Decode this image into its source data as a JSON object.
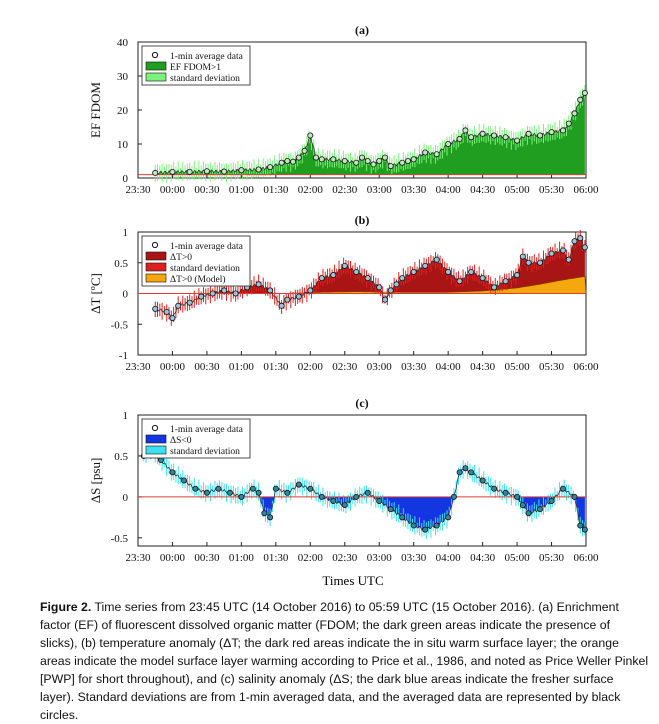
{
  "figure": {
    "time_axis": {
      "tick_labels": [
        "23:30",
        "00:00",
        "00:30",
        "01:00",
        "01:30",
        "02:00",
        "02:30",
        "03:00",
        "03:30",
        "04:00",
        "04:30",
        "05:00",
        "05:30",
        "06:00"
      ],
      "tick_minutes": [
        -30,
        0,
        30,
        60,
        90,
        120,
        150,
        180,
        210,
        240,
        270,
        300,
        330,
        360
      ],
      "label": "Times UTC"
    }
  },
  "chart_data": [
    {
      "type": "area",
      "panel_label": "(a)",
      "ylabel": "EF FDOM",
      "ylim": [
        0,
        40
      ],
      "yticks": [
        0,
        10,
        20,
        30,
        40
      ],
      "xlim_minutes": [
        -30,
        360
      ],
      "legend": {
        "position": "top-left",
        "entries": [
          "1-min average data",
          "EF FDOM>1",
          "standard deviation"
        ]
      },
      "colors": {
        "fill": "#1f9e1f",
        "sd": "#7cf27c",
        "baseline": "#e03c31",
        "marker": "#222222"
      },
      "baseline": 1,
      "series": [
        {
          "name": "1-min average data",
          "x_minutes": [
            -15,
            0,
            15,
            30,
            45,
            60,
            75,
            85,
            95,
            100,
            105,
            110,
            115,
            120,
            125,
            130,
            140,
            150,
            160,
            165,
            170,
            175,
            180,
            185,
            190,
            200,
            205,
            210,
            220,
            230,
            240,
            250,
            255,
            260,
            270,
            280,
            290,
            300,
            310,
            320,
            330,
            340,
            345,
            350,
            355,
            359
          ],
          "y": [
            1.5,
            1.8,
            1.8,
            2.0,
            1.9,
            2.3,
            2.5,
            3.2,
            4.5,
            5.0,
            4.8,
            6.0,
            8.0,
            12.5,
            6.0,
            5.5,
            5.5,
            5.0,
            4.5,
            6.0,
            5.0,
            4.0,
            5.0,
            6.0,
            3.5,
            4.5,
            5.0,
            5.5,
            7.5,
            7.0,
            10.0,
            11.5,
            14.0,
            12.0,
            13.0,
            12.5,
            12.0,
            11.0,
            13.0,
            12.5,
            13.5,
            14.0,
            16.0,
            19.0,
            23.0,
            25.0
          ]
        }
      ]
    },
    {
      "type": "area",
      "panel_label": "(b)",
      "ylabel": "ΔT [ºC]",
      "ylim": [
        -1,
        1
      ],
      "yticks": [
        -1,
        -0.5,
        0,
        0.5,
        1
      ],
      "xlim_minutes": [
        -30,
        360
      ],
      "legend": {
        "position": "top-left",
        "entries": [
          "1-min average data",
          "ΔT>0",
          "standard deviation",
          "ΔT>0 (Model)"
        ]
      },
      "colors": {
        "fill": "#a91515",
        "sd": "#e02020",
        "model": "#f5a70e",
        "baseline": "#e03c31",
        "marker": "#9ec3d8"
      },
      "series": [
        {
          "name": "1-min average data",
          "x_minutes": [
            -15,
            -5,
            0,
            5,
            15,
            25,
            35,
            45,
            55,
            65,
            75,
            85,
            95,
            100,
            110,
            120,
            130,
            140,
            150,
            160,
            170,
            180,
            185,
            190,
            195,
            200,
            210,
            220,
            230,
            240,
            250,
            260,
            270,
            280,
            290,
            300,
            305,
            310,
            320,
            330,
            340,
            345,
            350,
            355,
            359
          ],
          "y": [
            -0.25,
            -0.3,
            -0.4,
            -0.2,
            -0.15,
            -0.05,
            0.0,
            0.05,
            0.0,
            0.1,
            0.15,
            0.05,
            -0.2,
            -0.1,
            -0.05,
            0.05,
            0.25,
            0.3,
            0.45,
            0.35,
            0.25,
            0.1,
            -0.1,
            0.05,
            0.15,
            0.25,
            0.35,
            0.45,
            0.55,
            0.35,
            0.2,
            0.35,
            0.25,
            0.1,
            0.2,
            0.3,
            0.6,
            0.5,
            0.5,
            0.65,
            0.7,
            0.55,
            0.85,
            0.9,
            0.75
          ]
        },
        {
          "name": "ΔT>0 (Model)",
          "x_minutes": [
            95,
            130,
            160,
            200,
            240,
            270,
            300,
            320,
            340,
            360
          ],
          "y": [
            0.0,
            0.02,
            0.03,
            0.02,
            0.02,
            0.04,
            0.09,
            0.15,
            0.22,
            0.28
          ]
        }
      ]
    },
    {
      "type": "area",
      "panel_label": "(c)",
      "ylabel": "ΔS [psu]",
      "ylim": [
        -0.6,
        1
      ],
      "yticks": [
        -0.5,
        0,
        0.5,
        1
      ],
      "xlim_minutes": [
        -30,
        360
      ],
      "legend": {
        "position": "top-left",
        "entries": [
          "1-min average data",
          "ΔS<0",
          "standard deviation"
        ]
      },
      "colors": {
        "fill": "#1236e0",
        "sd": "#3de0f0",
        "baseline": "#e03c31",
        "marker": "#2f8aa0"
      },
      "series": [
        {
          "name": "1-min average data",
          "x_minutes": [
            -25,
            -20,
            -10,
            0,
            10,
            20,
            30,
            40,
            50,
            60,
            70,
            75,
            80,
            85,
            90,
            100,
            110,
            120,
            130,
            140,
            150,
            160,
            170,
            180,
            190,
            200,
            210,
            220,
            230,
            240,
            245,
            250,
            255,
            260,
            270,
            280,
            290,
            300,
            305,
            310,
            320,
            330,
            340,
            350,
            355,
            359
          ],
          "y": [
            0.5,
            0.6,
            0.45,
            0.3,
            0.2,
            0.1,
            0.05,
            0.1,
            0.05,
            0.0,
            0.1,
            0.05,
            -0.2,
            -0.25,
            0.1,
            0.05,
            0.15,
            0.1,
            0.0,
            -0.05,
            -0.1,
            0.0,
            0.05,
            -0.05,
            -0.15,
            -0.25,
            -0.35,
            -0.4,
            -0.35,
            -0.25,
            0.0,
            0.3,
            0.35,
            0.3,
            0.2,
            0.1,
            0.05,
            0.0,
            -0.1,
            -0.2,
            -0.15,
            -0.05,
            0.1,
            0.0,
            -0.35,
            -0.4
          ]
        }
      ]
    }
  ],
  "caption": {
    "label": "Figure 2.",
    "text": " Time series from 23:45 UTC (14 October 2016) to 05:59 UTC (15 October 2016). (a) Enrichment factor (EF) of fluorescent dissolved organic matter (FDOM; the dark green areas indicate the presence of slicks), (b) temperature anomaly (ΔT; the dark red areas indicate the in situ warm surface layer; the orange areas indicate the model surface layer warming according to Price et al., 1986, and noted as Price Weller Pinkel [PWP] for short throughout), and (c) salinity anomaly (ΔS; the dark blue areas indicate the fresher surface layer). Standard deviations are from 1-min averaged data, and the averaged data are represented by black circles."
  }
}
